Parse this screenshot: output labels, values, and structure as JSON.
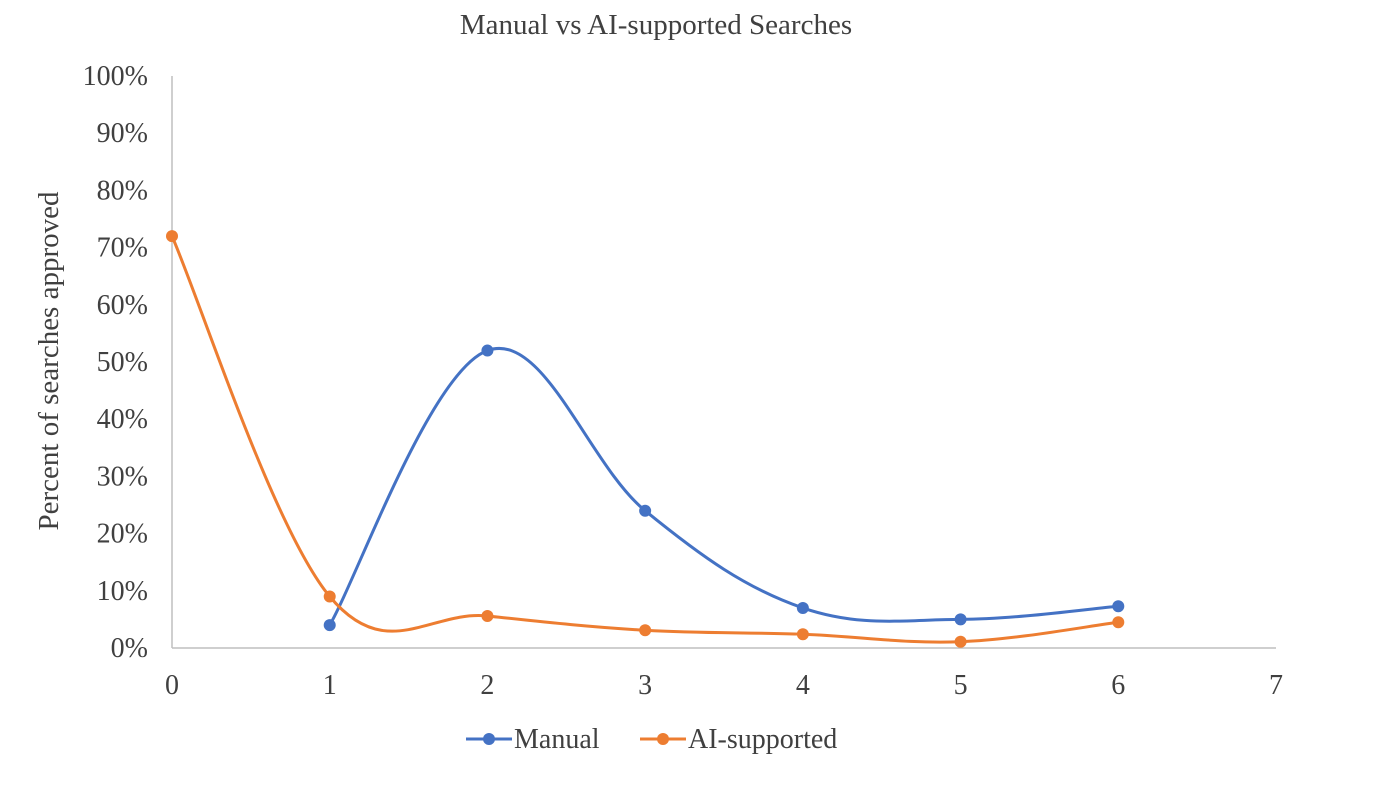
{
  "chart_data": {
    "type": "line",
    "title": "Manual vs AI-supported Searches",
    "xlabel": "",
    "ylabel": "Percent of searches approved",
    "xlim": [
      0,
      7
    ],
    "ylim": [
      0,
      1
    ],
    "x_ticks": [
      "0",
      "1",
      "2",
      "3",
      "4",
      "5",
      "6",
      "7"
    ],
    "y_ticks": [
      "0%",
      "10%",
      "20%",
      "30%",
      "40%",
      "50%",
      "60%",
      "70%",
      "80%",
      "90%",
      "100%"
    ],
    "grid": false,
    "smooth": true,
    "legend_position": "bottom",
    "series": [
      {
        "name": "Manual",
        "color": "#4472C4",
        "points": [
          [
            1,
            0.04
          ],
          [
            2,
            0.52
          ],
          [
            3,
            0.24
          ],
          [
            4,
            0.07
          ],
          [
            5,
            0.05
          ],
          [
            6,
            0.073
          ]
        ]
      },
      {
        "name": "AI-supported",
        "color": "#ED7D31",
        "points": [
          [
            0,
            0.72
          ],
          [
            1,
            0.09
          ],
          [
            2,
            0.056
          ],
          [
            3,
            0.031
          ],
          [
            4,
            0.024
          ],
          [
            5,
            0.011
          ],
          [
            6,
            0.045
          ]
        ]
      }
    ]
  }
}
